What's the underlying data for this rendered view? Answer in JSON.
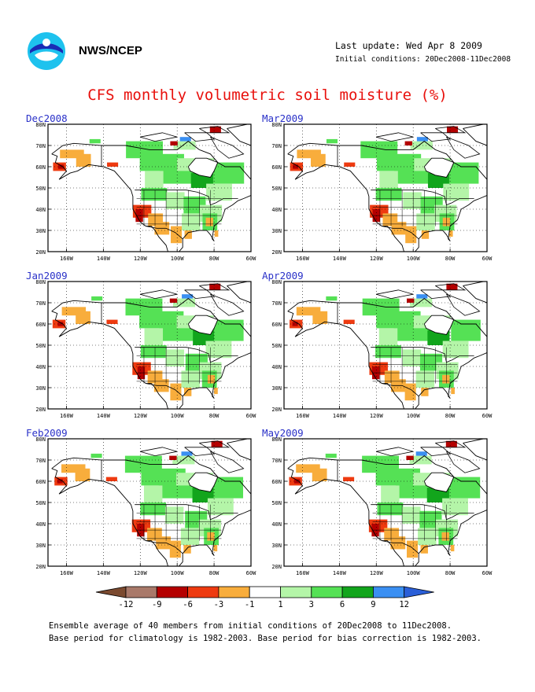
{
  "header": {
    "org": "NWS/NCEP",
    "last_update": "Last update: Wed Apr 8 2009",
    "initial_conditions": "Initial conditions: 20Dec2008-11Dec2008",
    "title": "CFS monthly volumetric soil moisture (%)"
  },
  "panels": [
    {
      "id": "dec2008",
      "title": "Dec2008"
    },
    {
      "id": "mar2009",
      "title": "Mar2009"
    },
    {
      "id": "jan2009",
      "title": "Jan2009"
    },
    {
      "id": "apr2009",
      "title": "Apr2009"
    },
    {
      "id": "feb2009",
      "title": "Feb2009"
    },
    {
      "id": "may2009",
      "title": "May2009"
    }
  ],
  "map_axes": {
    "lat_labels": [
      "80N",
      "70N",
      "60N",
      "50N",
      "40N",
      "30N",
      "20N"
    ],
    "lon_labels": [
      "160W",
      "140W",
      "120W",
      "100W",
      "80W",
      "60W"
    ]
  },
  "legend": {
    "labels": [
      "-12",
      "-9",
      "-6",
      "-3",
      "-1",
      "1",
      "3",
      "6",
      "9",
      "12"
    ],
    "colors": [
      "#7b4a2f",
      "#a9796a",
      "#b40000",
      "#ee3a10",
      "#f8ad3c",
      "#ffffff",
      "#b4f5a8",
      "#55e155",
      "#12a51c",
      "#3a8ff2",
      "#2a5fd8"
    ]
  },
  "footnotes": [
    "Ensemble average of 40 members from initial conditions of 20Dec2008 to 11Dec2008.",
    "Base period for climatology is 1982-2003. Base period for bias correction is 1982-2003."
  ]
}
